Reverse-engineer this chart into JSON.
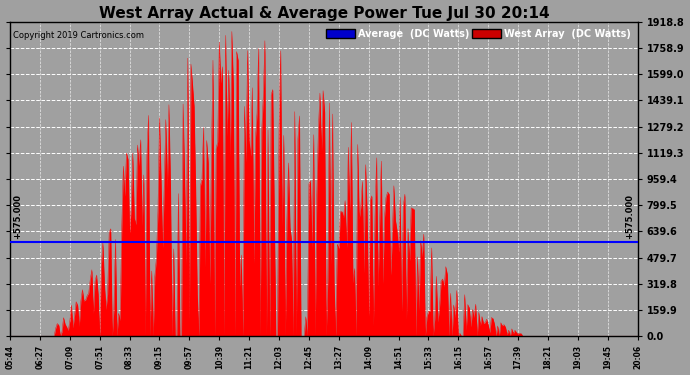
{
  "title": "West Array Actual & Average Power Tue Jul 30 20:14",
  "copyright": "Copyright 2019 Cartronics.com",
  "avg_label": "Average  (DC Watts)",
  "west_label": "West Array  (DC Watts)",
  "avg_line_value": 575.0,
  "avg_line_label": "+575.000",
  "ymax": 1918.8,
  "ymin": 0.0,
  "yticks": [
    0.0,
    159.9,
    319.8,
    479.7,
    639.6,
    799.5,
    959.4,
    1119.3,
    1279.2,
    1439.1,
    1599.0,
    1758.9,
    1918.8
  ],
  "ytick_labels": [
    "0.0",
    "159.9",
    "319.8",
    "479.7",
    "639.6",
    "799.5",
    "959.4",
    "1119.3",
    "1279.2",
    "1439.1",
    "1599.0",
    "1758.9",
    "1918.8"
  ],
  "xtick_labels": [
    "05:44",
    "06:27",
    "07:09",
    "07:51",
    "08:33",
    "09:15",
    "09:57",
    "10:39",
    "11:21",
    "12:03",
    "12:45",
    "13:27",
    "14:09",
    "14:51",
    "15:33",
    "16:15",
    "16:57",
    "17:39",
    "18:21",
    "19:03",
    "19:45",
    "20:06"
  ],
  "bg_color": "#a0a0a0",
  "plot_bg_color": "#a0a0a0",
  "fill_color": "#ff0000",
  "line_color": "#0000ff",
  "grid_color": "#ffffff",
  "legend_blue_bg": "#0000cc",
  "legend_red_bg": "#cc0000"
}
